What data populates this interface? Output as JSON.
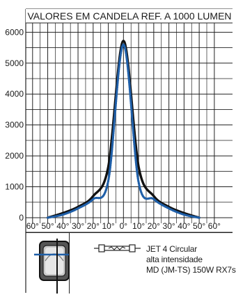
{
  "chart_data": {
    "type": "line",
    "title": "VALORES EM CANDELA REF. A 1000 LUMEN",
    "xlabel": "",
    "ylabel": "",
    "x_tick_labels": [
      "60°",
      "50°",
      "40°",
      "30°",
      "20°",
      "10°",
      "0°",
      "10°",
      "20°",
      "30°",
      "40°",
      "50°",
      "60°"
    ],
    "x": [
      -60,
      -50,
      -40,
      -30,
      -20,
      -10,
      0,
      10,
      20,
      30,
      40,
      50,
      60
    ],
    "xlim": [
      -60,
      60
    ],
    "y_ticks": [
      0,
      1000,
      2000,
      3000,
      4000,
      5000,
      6000
    ],
    "ylim": [
      0,
      6300
    ],
    "grid": true,
    "series": [
      {
        "color": "#111111",
        "style": "solid",
        "values": [
          null,
          0,
          150,
          350,
          700,
          1650,
          5720,
          1650,
          700,
          350,
          150,
          0,
          null
        ]
      },
      {
        "color": "#1f5fa8",
        "style": "dotted",
        "values": [
          null,
          0,
          100,
          300,
          600,
          1200,
          5600,
          1150,
          600,
          300,
          100,
          0,
          null
        ]
      }
    ]
  },
  "legend": {
    "lamp_icon": "lamp-icon",
    "luminaire_icon": "luminaire-icon",
    "lines": [
      "JET 4 Circular",
      "alta intensidade",
      "MD (JM-TS) 150W RX7s"
    ]
  }
}
